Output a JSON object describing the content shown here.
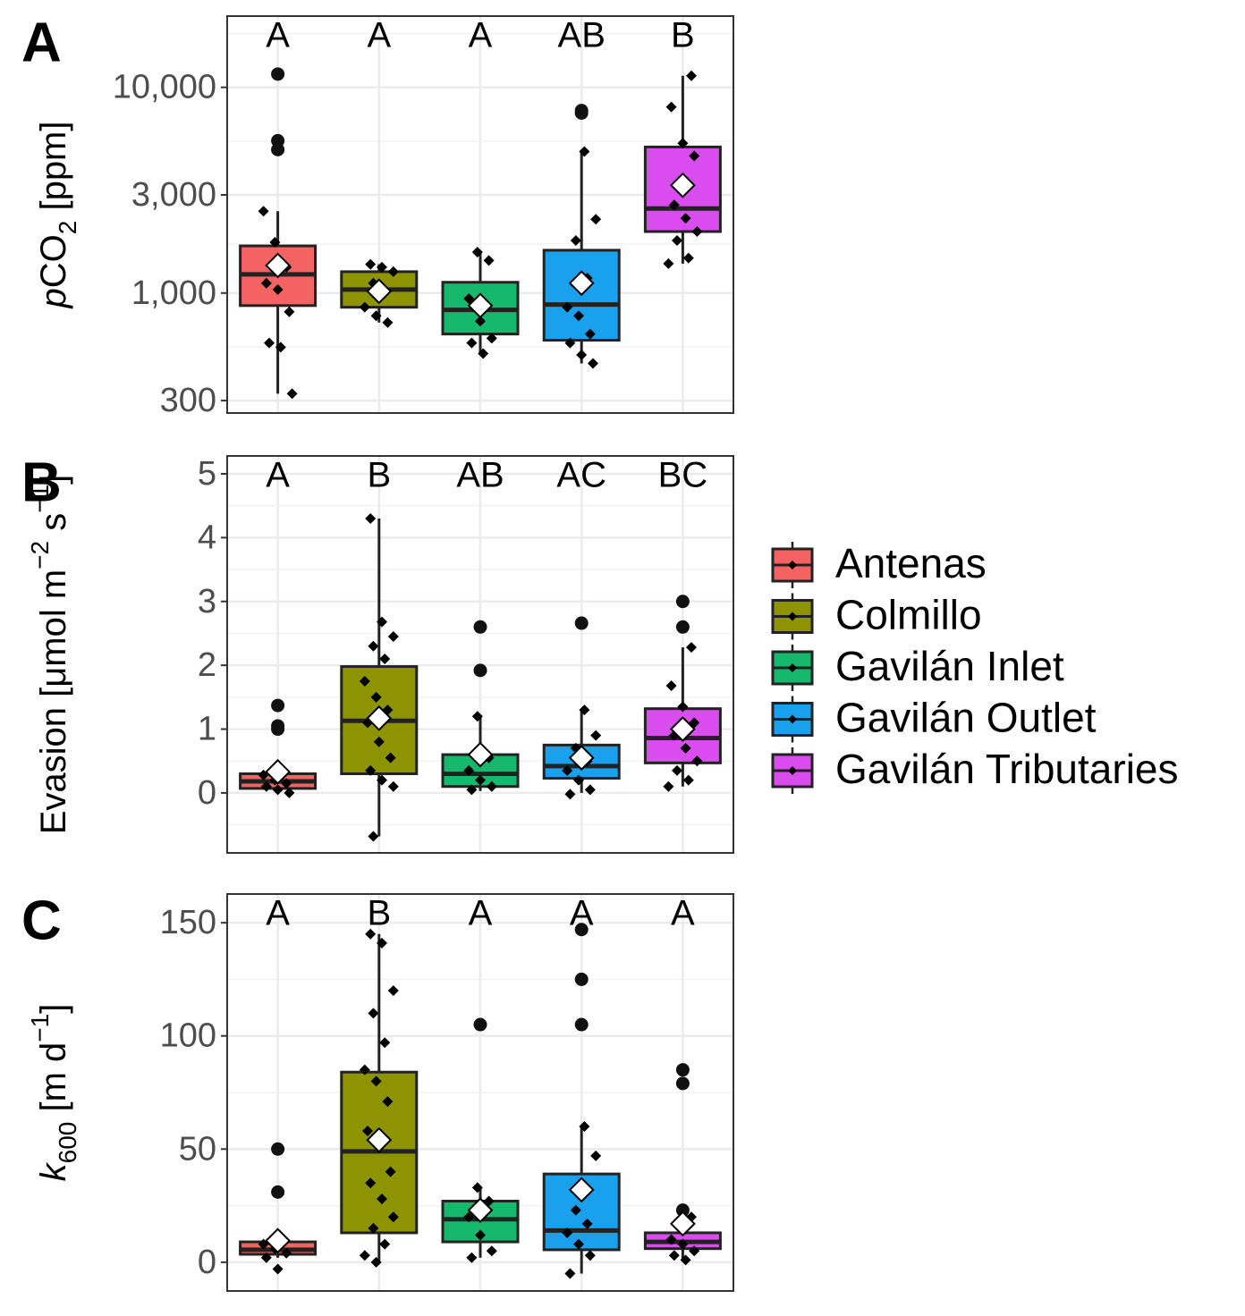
{
  "legend": {
    "series": [
      {
        "name": "Antenas",
        "color": "#F26361"
      },
      {
        "name": "Colmillo",
        "color": "#8E9400"
      },
      {
        "name": "Gavilán Inlet",
        "color": "#16B86E"
      },
      {
        "name": "Gavilán Outlet",
        "color": "#1AA1EE"
      },
      {
        "name": "Gavilán Tributaries",
        "color": "#D94CEE"
      }
    ]
  },
  "chart_data": [
    {
      "type": "box",
      "panel": "A",
      "log": true,
      "grid": true,
      "ylabel": [
        {
          "text": "p",
          "style": "italic"
        },
        {
          "text": "CO"
        },
        {
          "text": "2",
          "style": "sub"
        },
        {
          "text": " [ppm]"
        }
      ],
      "ylim": [
        261,
        22200
      ],
      "yticks": [
        300,
        {
          "value": 1000,
          "label": "1,000"
        },
        {
          "value": 3000,
          "label": "3,000"
        },
        {
          "value": 10000,
          "label": "10,000"
        }
      ],
      "groups": [
        {
          "letter": "A",
          "lower": 324,
          "q1": 869,
          "median": 1233,
          "q3": 1695,
          "upper": 2500,
          "mean": 1362,
          "outliers": [
            11600,
            5500,
            4980
          ],
          "points": [
            2500,
            1766,
            1336,
            1117,
            1040,
            811,
            572,
            545,
            324
          ]
        },
        {
          "letter": "A",
          "lower": 719,
          "q1": 853,
          "median": 1040,
          "q3": 1270,
          "upper": 1380,
          "mean": 1020,
          "outliers": [],
          "points": [
            1380,
            1336,
            1270,
            1117,
            1000,
            853,
            775,
            719
          ]
        },
        {
          "letter": "A",
          "lower": 508,
          "q1": 632,
          "median": 828,
          "q3": 1128,
          "upper": 1582,
          "mean": 869,
          "outliers": [],
          "points": [
            1582,
            1440,
            940,
            730,
            603,
            572,
            508
          ]
        },
        {
          "letter": "AB",
          "lower": 455,
          "q1": 590,
          "median": 879,
          "q3": 1615,
          "upper": 4875,
          "mean": 1117,
          "outliers": [
            7710,
            7500
          ],
          "points": [
            4875,
            2283,
            1800,
            1183,
            853,
            775,
            632,
            572,
            500,
            455
          ]
        },
        {
          "letter": "B",
          "lower": 1390,
          "q1": 1990,
          "median": 2576,
          "q3": 5130,
          "upper": 11380,
          "mean": 3342,
          "outliers": [],
          "points": [
            11380,
            8030,
            5350,
            4640,
            2680,
            2310,
            1990,
            1800,
            1480,
            1390
          ]
        }
      ]
    },
    {
      "type": "box",
      "panel": "B",
      "log": false,
      "grid": true,
      "ylabel": [
        {
          "text": "Evasion [μmol m"
        },
        {
          "text": "−2",
          "style": "sup"
        },
        {
          "text": " s"
        },
        {
          "text": "−1",
          "style": "sup"
        },
        {
          "text": "]"
        }
      ],
      "ylim": [
        -0.94,
        5.28
      ],
      "yticks": [
        0,
        1,
        2,
        3,
        4,
        5
      ],
      "groups": [
        {
          "letter": "A",
          "lower": 0,
          "q1": 0.07,
          "median": 0.18,
          "q3": 0.3,
          "upper": 0.3,
          "mean": 0.33,
          "outliers": [
            1.37,
            1.05,
            1.0
          ],
          "points": [
            0.28,
            0.2,
            0.15,
            0.1,
            0.05,
            0.0
          ]
        },
        {
          "letter": "B",
          "lower": -0.68,
          "q1": 0.3,
          "median": 1.13,
          "q3": 1.98,
          "upper": 4.3,
          "mean": 1.17,
          "outliers": [],
          "points": [
            4.3,
            2.68,
            2.45,
            2.3,
            2.1,
            1.75,
            1.5,
            1.3,
            1.1,
            0.8,
            0.55,
            0.35,
            0.2,
            0.1,
            -0.68
          ]
        },
        {
          "letter": "AB",
          "lower": 0.03,
          "q1": 0.1,
          "median": 0.3,
          "q3": 0.6,
          "upper": 1.2,
          "mean": 0.6,
          "outliers": [
            2.6,
            1.92
          ],
          "points": [
            1.2,
            0.55,
            0.35,
            0.2,
            0.1,
            0.05
          ]
        },
        {
          "letter": "AC",
          "lower": 0,
          "q1": 0.23,
          "median": 0.42,
          "q3": 0.75,
          "upper": 1.3,
          "mean": 0.55,
          "outliers": [
            2.66
          ],
          "points": [
            1.3,
            0.9,
            0.7,
            0.5,
            0.35,
            0.2,
            0.05,
            -0.02
          ]
        },
        {
          "letter": "BC",
          "lower": 0.1,
          "q1": 0.47,
          "median": 0.86,
          "q3": 1.32,
          "upper": 2.28,
          "mean": 1.0,
          "outliers": [
            3.0,
            2.6
          ],
          "points": [
            2.28,
            1.68,
            1.35,
            1.1,
            0.9,
            0.7,
            0.5,
            0.35,
            0.2,
            0.1
          ]
        }
      ]
    },
    {
      "type": "box",
      "panel": "C",
      "log": false,
      "grid": true,
      "ylabel": [
        {
          "text": "k",
          "style": "italic"
        },
        {
          "text": "600",
          "style": "sub"
        },
        {
          "text": " [m d"
        },
        {
          "text": "−1",
          "style": "sup"
        },
        {
          "text": "]"
        }
      ],
      "ylim": [
        -12.7,
        162.7
      ],
      "yticks": [
        0,
        50,
        100,
        150
      ],
      "groups": [
        {
          "letter": "A",
          "lower": 2,
          "q1": 3.5,
          "median": 5.5,
          "q3": 9,
          "upper": 9,
          "mean": 9.5,
          "outliers": [
            50,
            31
          ],
          "points": [
            8,
            6,
            4,
            2,
            -3
          ]
        },
        {
          "letter": "B",
          "lower": 0,
          "q1": 13,
          "median": 49,
          "q3": 84,
          "upper": 145,
          "mean": 54,
          "outliers": [],
          "points": [
            145,
            141,
            120,
            110,
            97,
            85,
            80,
            71,
            58,
            52,
            40,
            35,
            28,
            20,
            15,
            8,
            3,
            0
          ]
        },
        {
          "letter": "A",
          "lower": 2,
          "q1": 9,
          "median": 19,
          "q3": 27,
          "upper": 33,
          "mean": 23,
          "outliers": [
            105
          ],
          "points": [
            33,
            27,
            20,
            12,
            5,
            2
          ]
        },
        {
          "letter": "A",
          "lower": -5,
          "q1": 5.5,
          "median": 14,
          "q3": 39,
          "upper": 60,
          "mean": 32,
          "outliers": [
            147,
            125,
            105
          ],
          "points": [
            60,
            47,
            23,
            17,
            13,
            8,
            3,
            -5
          ]
        },
        {
          "letter": "A",
          "lower": 1,
          "q1": 6,
          "median": 9,
          "q3": 13,
          "upper": 20,
          "mean": 17,
          "outliers": [
            85,
            79,
            23
          ],
          "points": [
            20,
            10,
            8,
            5,
            3,
            1
          ]
        }
      ]
    }
  ]
}
